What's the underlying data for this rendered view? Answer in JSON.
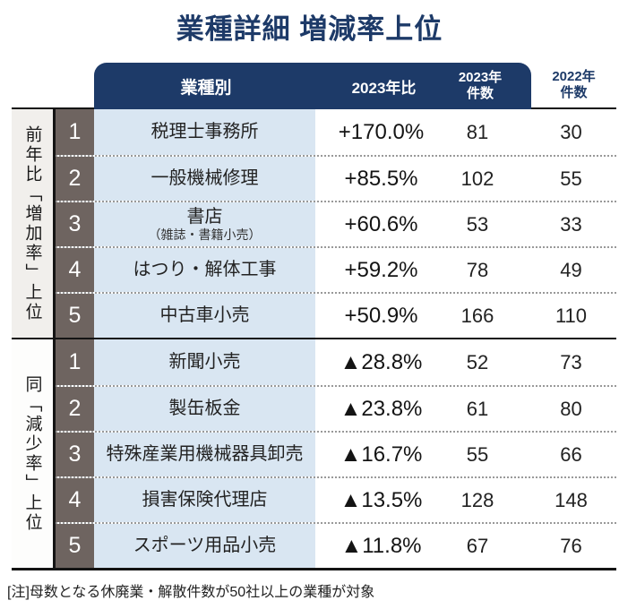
{
  "title": "業種詳細 増減率上位",
  "colors": {
    "accent_navy": "#1d3a68",
    "industry_cell_blue": "#d9e6f2",
    "rank_column_taupe": "#6e6460",
    "increase_label_bg": "#f1efec",
    "row_divider_dotted": "#999999"
  },
  "header": {
    "industry": "業種別",
    "ratio": "2023年比",
    "count2023": "2023年\n件数",
    "count2022": "2022年\n件数"
  },
  "sections": [
    {
      "label": "前年比「増加率」上位",
      "rows": [
        {
          "rank": "1",
          "name": "税理士事務所",
          "ratio": "+170.0%",
          "count2023": "81",
          "count2022": "30"
        },
        {
          "rank": "2",
          "name": "一般機械修理",
          "ratio": "+85.5%",
          "count2023": "102",
          "count2022": "55"
        },
        {
          "rank": "3",
          "name": "書店",
          "subname": "（雑誌・書籍小売）",
          "ratio": "+60.6%",
          "count2023": "53",
          "count2022": "33"
        },
        {
          "rank": "4",
          "name": "はつり・解体工事",
          "ratio": "+59.2%",
          "count2023": "78",
          "count2022": "49"
        },
        {
          "rank": "5",
          "name": "中古車小売",
          "ratio": "+50.9%",
          "count2023": "166",
          "count2022": "110"
        }
      ]
    },
    {
      "label": "同「減少率」上位",
      "rows": [
        {
          "rank": "1",
          "name": "新聞小売",
          "ratio": "▲28.8%",
          "count2023": "52",
          "count2022": "73"
        },
        {
          "rank": "2",
          "name": "製缶板金",
          "ratio": "▲23.8%",
          "count2023": "61",
          "count2022": "80"
        },
        {
          "rank": "3",
          "name": "特殊産業用機械器具卸売",
          "ratio": "▲16.7%",
          "count2023": "55",
          "count2022": "66"
        },
        {
          "rank": "4",
          "name": "損害保険代理店",
          "ratio": "▲13.5%",
          "count2023": "128",
          "count2022": "148"
        },
        {
          "rank": "5",
          "name": "スポーツ用品小売",
          "ratio": "▲11.8%",
          "count2023": "67",
          "count2022": "76"
        }
      ]
    }
  ],
  "note": "[注]母数となる休廃業・解散件数が50社以上の業種が対象",
  "chart_data": {
    "type": "table",
    "title": "業種詳細 増減率上位",
    "columns": [
      "業種別",
      "2023年比",
      "2023年件数",
      "2022年件数"
    ],
    "groups": [
      {
        "group_label": "前年比「増加率」上位",
        "rows": [
          [
            "税理士事務所",
            "+170.0%",
            81,
            30
          ],
          [
            "一般機械修理",
            "+85.5%",
            102,
            55
          ],
          [
            "書店（雑誌・書籍小売）",
            "+60.6%",
            53,
            33
          ],
          [
            "はつり・解体工事",
            "+59.2%",
            78,
            49
          ],
          [
            "中古車小売",
            "+50.9%",
            166,
            110
          ]
        ]
      },
      {
        "group_label": "同「減少率」上位",
        "rows": [
          [
            "新聞小売",
            "▲28.8%",
            52,
            73
          ],
          [
            "製缶板金",
            "▲23.8%",
            61,
            80
          ],
          [
            "特殊産業用機械器具卸売",
            "▲16.7%",
            55,
            66
          ],
          [
            "損害保険代理店",
            "▲13.5%",
            128,
            148
          ],
          [
            "スポーツ用品小売",
            "▲11.8%",
            67,
            76
          ]
        ]
      }
    ],
    "footnote": "[注]母数となる休廃業・解散件数が50社以上の業種が対象"
  }
}
